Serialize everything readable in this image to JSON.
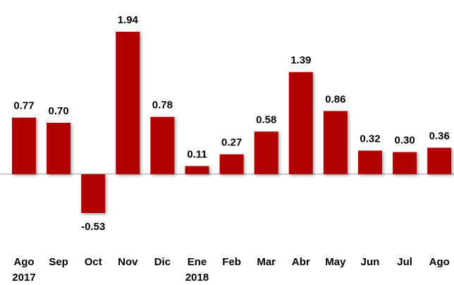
{
  "chart_data": {
    "type": "bar",
    "categories": [
      "Ago",
      "Sep",
      "Oct",
      "Nov",
      "Dic",
      "Ene",
      "Feb",
      "Mar",
      "Abr",
      "May",
      "Jun",
      "Jul",
      "Ago"
    ],
    "year_labels": [
      "2017",
      null,
      null,
      null,
      null,
      "2018",
      null,
      null,
      null,
      null,
      null,
      null,
      null
    ],
    "values": [
      0.77,
      0.7,
      -0.53,
      1.94,
      0.78,
      0.11,
      0.27,
      0.58,
      1.39,
      0.86,
      0.32,
      0.3,
      0.36
    ],
    "value_labels": [
      "0.77",
      "0.70",
      "-0.53",
      "1.94",
      "0.78",
      "0.11",
      "0.27",
      "0.58",
      "1.39",
      "0.86",
      "0.32",
      "0.30",
      "0.36"
    ],
    "color": "#b00000"
  }
}
